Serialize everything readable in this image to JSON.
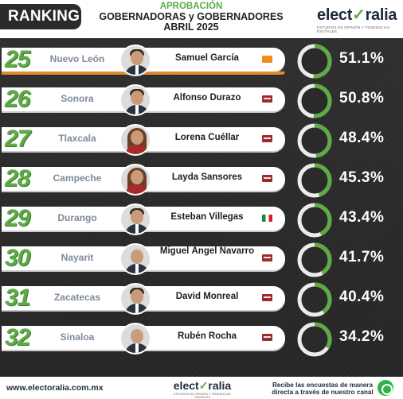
{
  "header": {
    "ranking_label": "RANKING",
    "title_line1": "APROBACIÓN",
    "title_line2": "GOBERNADORAS y GOBERNADORES",
    "title_line3": "ABRIL 2025",
    "brand_prefix": "elect",
    "brand_check": "✓",
    "brand_suffix": "ralia",
    "brand_tagline": "ESTUDIOS DE OPINIÓN Y TENDENCIAS DIGITALES"
  },
  "rows": [
    {
      "rank": "25",
      "state": "Nuevo León",
      "name": "Samuel García",
      "party": "mc",
      "approval": 51.1,
      "approval_label": "51.1%"
    },
    {
      "rank": "26",
      "state": "Sonora",
      "name": "Alfonso Durazo",
      "party": "morena",
      "approval": 50.8,
      "approval_label": "50.8%"
    },
    {
      "rank": "27",
      "state": "Tlaxcala",
      "name": "Lorena Cuéllar",
      "party": "morena",
      "approval": 48.4,
      "approval_label": "48.4%"
    },
    {
      "rank": "28",
      "state": "Campeche",
      "name": "Layda Sansores",
      "party": "morena",
      "approval": 45.3,
      "approval_label": "45.3%"
    },
    {
      "rank": "29",
      "state": "Durango",
      "name": "Esteban Villegas",
      "party": "pri",
      "approval": 43.4,
      "approval_label": "43.4%"
    },
    {
      "rank": "30",
      "state": "Nayarit",
      "name": "Miguel Ángel Navarro",
      "party": "morena",
      "approval": 41.7,
      "approval_label": "41.7%"
    },
    {
      "rank": "31",
      "state": "Zacatecas",
      "name": "David Monreal",
      "party": "morena",
      "approval": 40.4,
      "approval_label": "40.4%"
    },
    {
      "rank": "32",
      "state": "Sinaloa",
      "name": "Rubén Rocha",
      "party": "morena",
      "approval": 34.2,
      "approval_label": "34.2%"
    }
  ],
  "footer": {
    "url": "www.electoralia.com.mx",
    "brand_prefix": "elect",
    "brand_check": "✓",
    "brand_suffix": "ralia",
    "brand_tagline": "ESTUDIOS DE OPINIÓN Y TENDENCIAS DIGITALES",
    "cta_line1": "Recibe las encuestas de manera",
    "cta_line2": "directa a través de nuestro canal"
  },
  "colors": {
    "accent_green": "#5eab46",
    "gauge_track": "#e6e6e6",
    "mc_orange": "#f28c1a",
    "morena_red": "#9e2a2b"
  }
}
